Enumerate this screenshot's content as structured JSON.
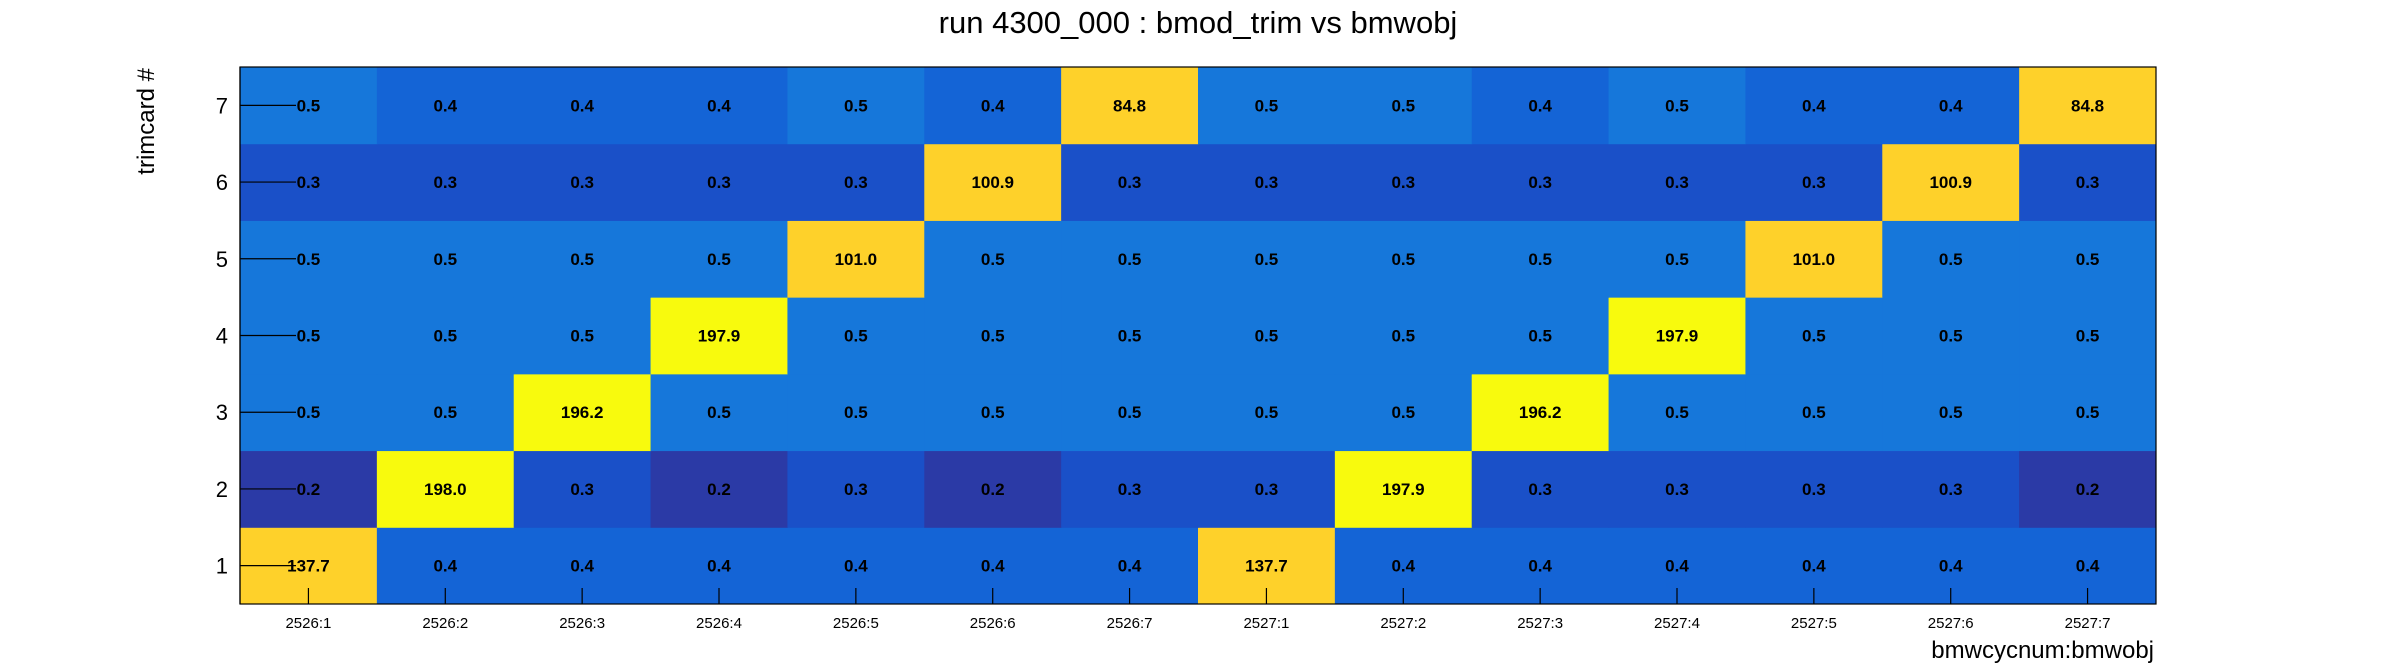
{
  "chart_data": {
    "type": "heatmap",
    "title": "run 4300_000 : bmod_trim vs bmwobj",
    "xlabel": "bmwcycnum:bmwobj",
    "ylabel": "trimcard #",
    "x_categories": [
      "2526:1",
      "2526:2",
      "2526:3",
      "2526:4",
      "2526:5",
      "2526:6",
      "2526:7",
      "2527:1",
      "2527:2",
      "2527:3",
      "2527:4",
      "2527:5",
      "2527:6",
      "2527:7"
    ],
    "y_categories": [
      "1",
      "2",
      "3",
      "4",
      "5",
      "6",
      "7"
    ],
    "values": [
      [
        137.7,
        0.4,
        0.4,
        0.4,
        0.4,
        0.4,
        0.4,
        137.7,
        0.4,
        0.4,
        0.4,
        0.4,
        0.4,
        0.4
      ],
      [
        0.2,
        198.0,
        0.3,
        0.2,
        0.3,
        0.2,
        0.3,
        0.3,
        197.9,
        0.3,
        0.3,
        0.3,
        0.3,
        0.2
      ],
      [
        0.5,
        0.5,
        196.2,
        0.5,
        0.5,
        0.5,
        0.5,
        0.5,
        0.5,
        196.2,
        0.5,
        0.5,
        0.5,
        0.5
      ],
      [
        0.5,
        0.5,
        0.5,
        197.9,
        0.5,
        0.5,
        0.5,
        0.5,
        0.5,
        0.5,
        197.9,
        0.5,
        0.5,
        0.5
      ],
      [
        0.5,
        0.5,
        0.5,
        0.5,
        101.0,
        0.5,
        0.5,
        0.5,
        0.5,
        0.5,
        0.5,
        101.0,
        0.5,
        0.5
      ],
      [
        0.3,
        0.3,
        0.3,
        0.3,
        0.3,
        100.9,
        0.3,
        0.3,
        0.3,
        0.3,
        0.3,
        0.3,
        100.9,
        0.3
      ],
      [
        0.5,
        0.4,
        0.4,
        0.4,
        0.5,
        0.4,
        84.8,
        0.5,
        0.5,
        0.4,
        0.5,
        0.4,
        0.4,
        84.8
      ]
    ],
    "colors": {
      "very_low": "#2b3aa6",
      "low": "#1a50c8",
      "mid_low": "#1464d6",
      "mid": "#1677da",
      "high_mid": "#fed12a",
      "high": "#f8fa0d"
    },
    "grid": false,
    "legend": "none"
  }
}
